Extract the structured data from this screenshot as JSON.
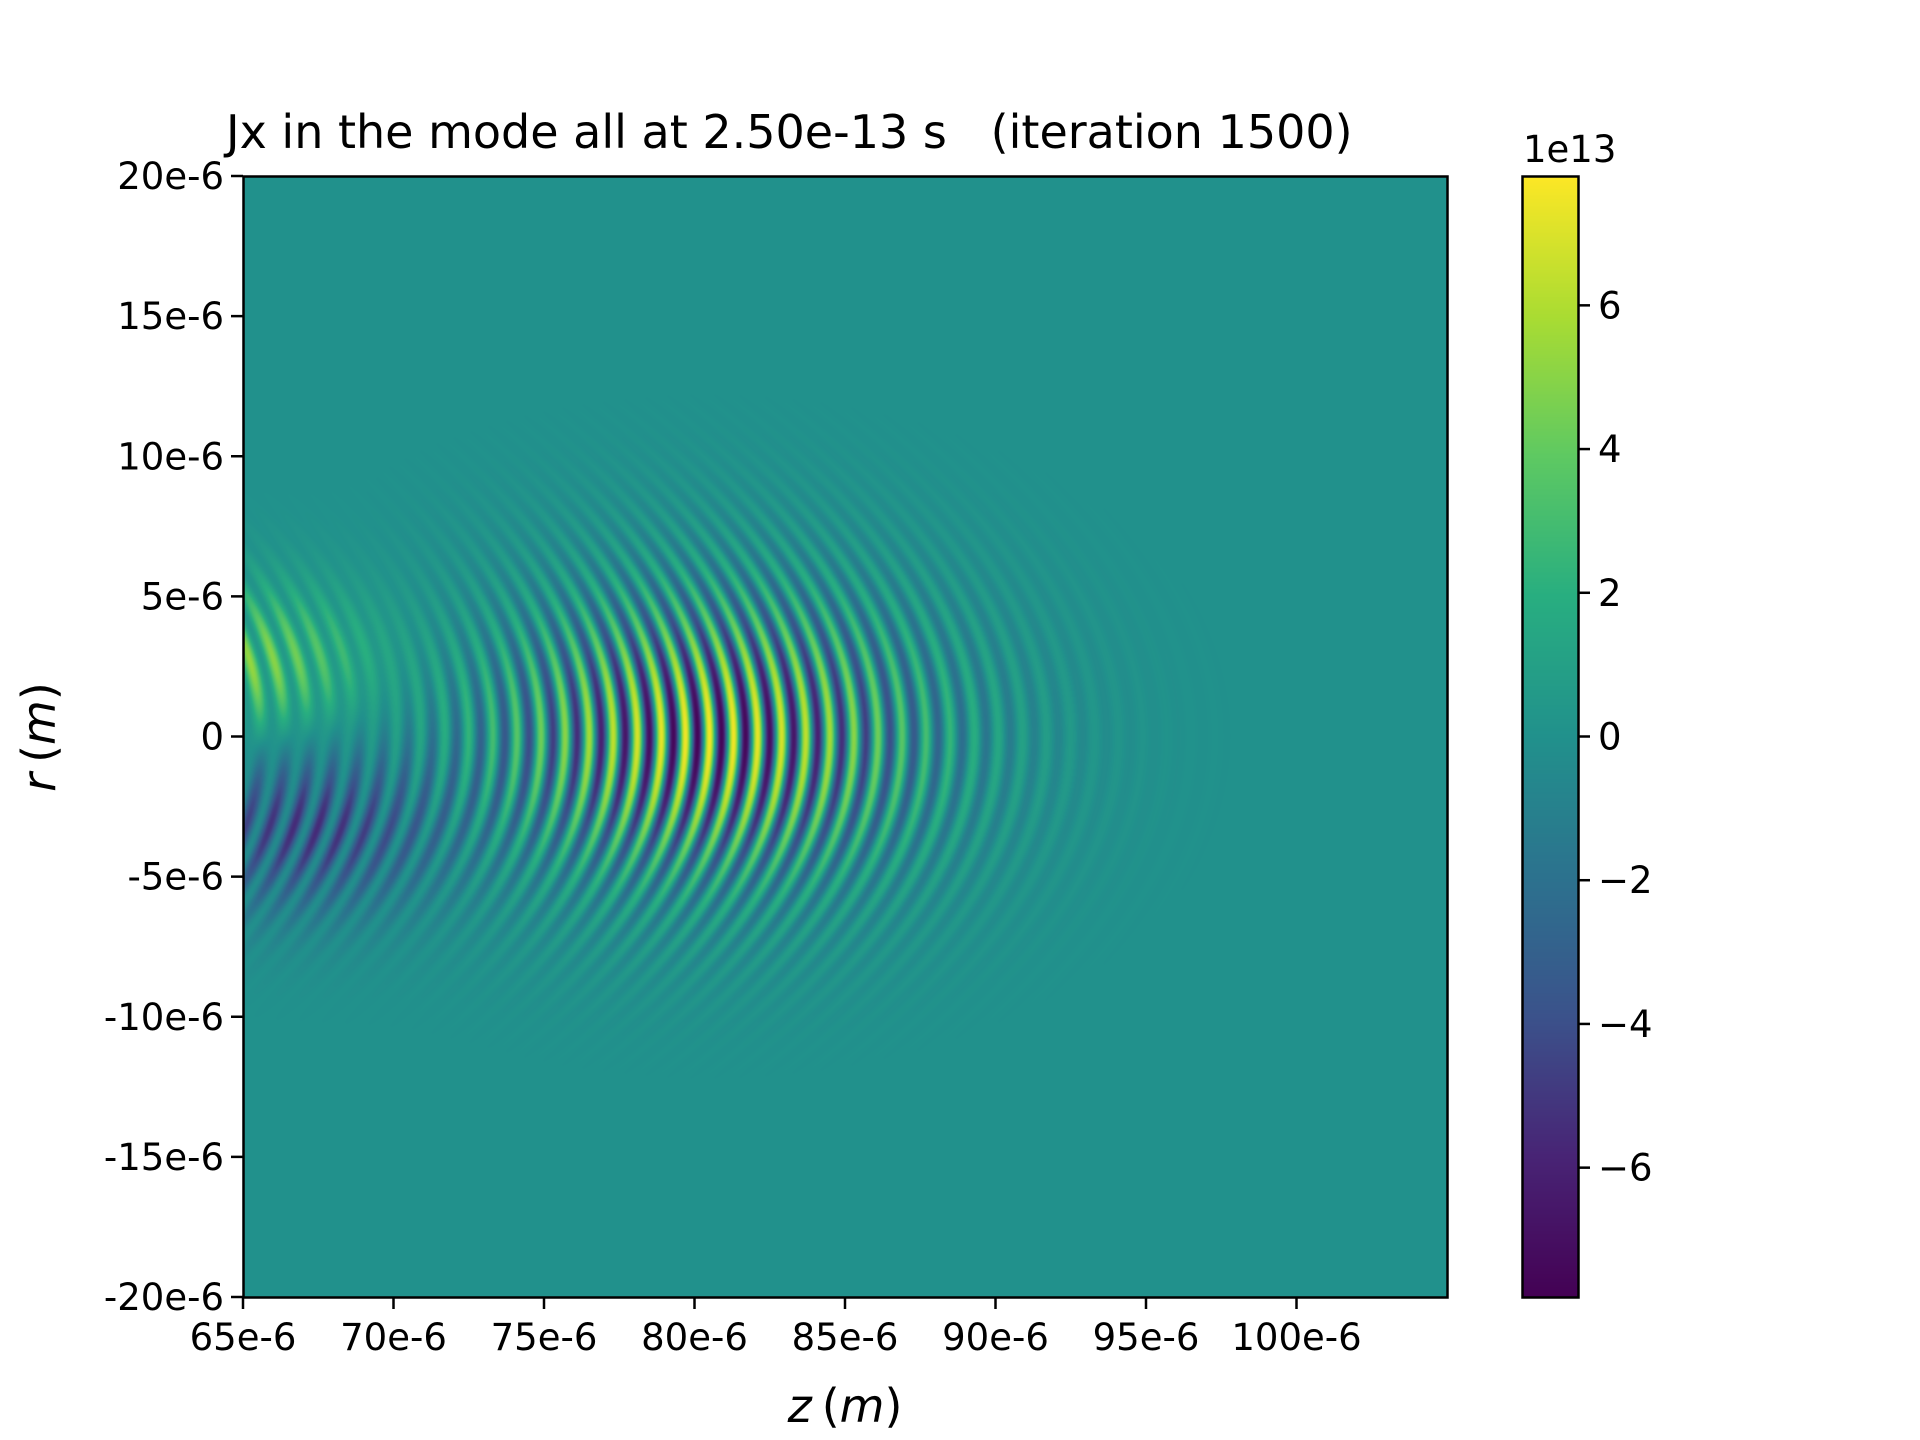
{
  "chart_data": {
    "type": "heatmap",
    "title": "Jx in the mode all at 2.50e-13 s   (iteration 1500)",
    "xlabel": "z (m)",
    "ylabel": "r (m)",
    "xlabel_var": "z",
    "xlabel_unit": "m",
    "ylabel_var": "r",
    "ylabel_unit": "m",
    "xlim": [
      6.5e-05,
      0.000105
    ],
    "ylim": [
      -2e-05,
      2e-05
    ],
    "x_ticks": [
      {
        "value": 6.5e-05,
        "label": "65e-6"
      },
      {
        "value": 7e-05,
        "label": "70e-6"
      },
      {
        "value": 7.5e-05,
        "label": "75e-6"
      },
      {
        "value": 8e-05,
        "label": "80e-6"
      },
      {
        "value": 8.5e-05,
        "label": "85e-6"
      },
      {
        "value": 9e-05,
        "label": "90e-6"
      },
      {
        "value": 9.5e-05,
        "label": "95e-6"
      },
      {
        "value": 0.0001,
        "label": "100e-6"
      }
    ],
    "y_ticks": [
      {
        "value": 2e-05,
        "label": "20e-6"
      },
      {
        "value": 1.5e-05,
        "label": "15e-6"
      },
      {
        "value": 1e-05,
        "label": "10e-6"
      },
      {
        "value": 5e-06,
        "label": "5e-6"
      },
      {
        "value": 0,
        "label": "0"
      },
      {
        "value": -5e-06,
        "label": "-5e-6"
      },
      {
        "value": -1e-05,
        "label": "-10e-6"
      },
      {
        "value": -1.5e-05,
        "label": "-15e-6"
      },
      {
        "value": -2e-05,
        "label": "-20e-6"
      }
    ],
    "colorbar": {
      "colormap": "viridis",
      "offset_label": "1e13",
      "range": [
        -7.8,
        7.8
      ],
      "ticks": [
        {
          "value": 6,
          "label": "6"
        },
        {
          "value": 4,
          "label": "4"
        },
        {
          "value": 2,
          "label": "2"
        },
        {
          "value": 0,
          "label": "0"
        },
        {
          "value": -2,
          "label": "−2"
        },
        {
          "value": -4,
          "label": "−4"
        },
        {
          "value": -6,
          "label": "−6"
        }
      ]
    },
    "field_model": {
      "description": "laser-driven current oscillations, strongest near z=80e-6 on axis, asymmetric lobes near z=65-70e-6",
      "wavelength": 8e-07,
      "pulse_center_z": 8.05e-05,
      "pulse_sigma_z": 7.5e-06,
      "pulse_waist_r": 5.2e-06,
      "pulse_amplitude": 7.6,
      "upper_lobe": {
        "z": 6.5e-05,
        "r": 2.5e-06,
        "amplitude": 5.5
      },
      "lower_lobe": {
        "z": 6.7e-05,
        "r": -3.2e-06,
        "amplitude": -5.5
      },
      "cmin": -7.8,
      "cmax": 7.8
    },
    "colors": {
      "background": "#ffffff",
      "axis": "#000000",
      "zero_level": "#21918c"
    }
  }
}
